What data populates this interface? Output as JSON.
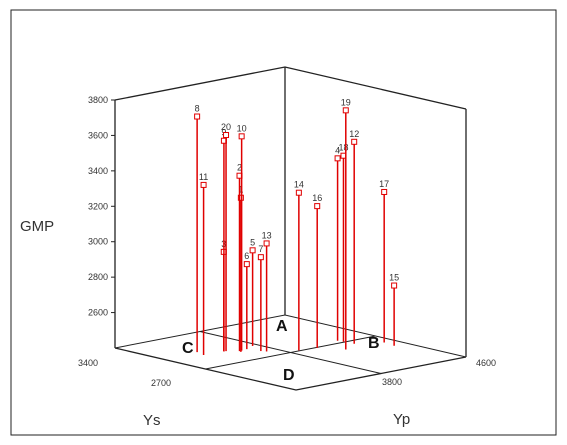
{
  "colors": {
    "stem": "#e00000",
    "axes": "#222222",
    "frame": "#222222"
  },
  "chart_data": {
    "type": "scatter",
    "variant": "3d-scatter-with-drop-lines",
    "title": "",
    "zlabel": "GMP",
    "xlabel": "Ys",
    "ylabel": "Yp",
    "zlim": [
      2400,
      3800
    ],
    "xlim": [
      1900,
      3400
    ],
    "ylim": [
      3000,
      4600
    ],
    "z_ticks": [
      "3800",
      "3600",
      "3400",
      "3200",
      "3000",
      "2800",
      "2600"
    ],
    "x_ticks": [
      "3400",
      "2700"
    ],
    "y_ticks": [
      "3800",
      "4600"
    ],
    "quadrant_labels": [
      "A",
      "B",
      "C",
      "D"
    ],
    "points": [
      {
        "label": "1",
        "ys": 2850,
        "yp": 3560,
        "gmp": 3270
      },
      {
        "label": "2",
        "ys": 2870,
        "yp": 3570,
        "gmp": 3390
      },
      {
        "label": "3",
        "ys": 2930,
        "yp": 3490,
        "gmp": 2960
      },
      {
        "label": "4",
        "ys": 2700,
        "yp": 4300,
        "gmp": 3430
      },
      {
        "label": "5",
        "ys": 2920,
        "yp": 3750,
        "gmp": 2940
      },
      {
        "label": "6",
        "ys": 2880,
        "yp": 3650,
        "gmp": 2880
      },
      {
        "label": "7",
        "ys": 2790,
        "yp": 3680,
        "gmp": 2930
      },
      {
        "label": "8",
        "ys": 3010,
        "yp": 3330,
        "gmp": 3730
      },
      {
        "label": "9",
        "ys": 2920,
        "yp": 3480,
        "gmp": 3590
      },
      {
        "label": "10",
        "ys": 2870,
        "yp": 3590,
        "gmp": 3610
      },
      {
        "label": "11",
        "ys": 2930,
        "yp": 3300,
        "gmp": 3360
      },
      {
        "label": "12",
        "ys": 2580,
        "yp": 4320,
        "gmp": 3540
      },
      {
        "label": "13",
        "ys": 2760,
        "yp": 3700,
        "gmp": 3010
      },
      {
        "label": "14",
        "ys": 2660,
        "yp": 3890,
        "gmp": 3290
      },
      {
        "label": "15",
        "ys": 2390,
        "yp": 4480,
        "gmp": 2740
      },
      {
        "label": "16",
        "ys": 2640,
        "yp": 4040,
        "gmp": 3200
      },
      {
        "label": "17",
        "ys": 2490,
        "yp": 4500,
        "gmp": 3250
      },
      {
        "label": "18",
        "ys": 2660,
        "yp": 4310,
        "gmp": 3450
      },
      {
        "label": "19",
        "ys": 2500,
        "yp": 4150,
        "gmp": 3750
      },
      {
        "label": "20",
        "ys": 2920,
        "yp": 3500,
        "gmp": 3620
      }
    ]
  }
}
